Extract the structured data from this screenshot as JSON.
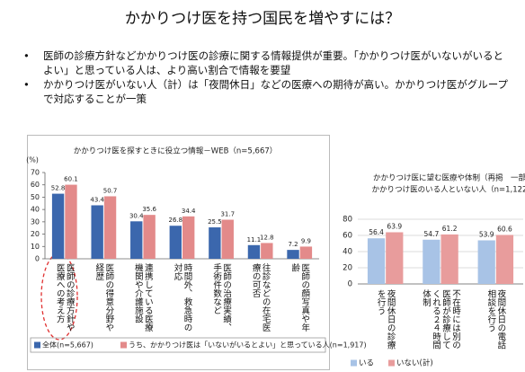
{
  "slide": {
    "title": "かかりつけ医を持つ国民を増やすには？",
    "bullets": [
      "医師の診療方針などかかりつけ医の診療に関する情報提供が重要。「かかりつけ医がいないがいるとよい」と思っている人は、より高い割合で情報を要望",
      "かかりつけ医がいない人（計）は「夜間休日」などの医療への期待が高い。かかりつけ医がグループで対応することが一策"
    ]
  },
  "chart_data": [
    {
      "type": "bar",
      "title": "かかりつけ医を探すときに役立つ情報－WEB（n=5,667）",
      "y_label": "(%)",
      "categories": [
        "医師の診療方針や医療への考え方",
        "医師の得意分野や経歴",
        "連携している医療機関や介護施設",
        "時間外、救急時の対応",
        "医師の治療実績、手術件数など",
        "往診などの在宅医療の可否",
        "医師の顔写真や年齢"
      ],
      "series": [
        {
          "name": "全体(n=5,667)",
          "color": "#3b67ad",
          "values": [
            52.8,
            43.4,
            30.4,
            26.8,
            25.5,
            11.1,
            7.2
          ]
        },
        {
          "name": "うち、かかりつけ医は「いないがいるとよい」と思っている人(n=1,917)",
          "color": "#e38a8a",
          "values": [
            60.1,
            50.7,
            35.6,
            34.4,
            31.7,
            12.8,
            9.9
          ]
        }
      ],
      "ylim": [
        0,
        70
      ],
      "yticks": [
        0,
        10,
        20,
        30,
        40,
        50,
        60,
        70
      ],
      "grid": false
    },
    {
      "type": "bar",
      "title": "かかりつけ医に望む医療や体制（再掲　一部",
      "subtitle": "かかりつけ医のいる人といない人（n=1,122",
      "categories": [
        "夜間休日の診療を行う",
        "不在時には別の医師が診療してくれる２４時間体制",
        "夜間休日の電話相談を行う"
      ],
      "series": [
        {
          "name": "いる",
          "color": "#a8c3e6",
          "values": [
            56.4,
            54.7,
            53.9
          ]
        },
        {
          "name": "いない(計)",
          "color": "#e89c9c",
          "values": [
            63.9,
            61.2,
            60.6
          ]
        }
      ],
      "ylim": [
        0,
        80
      ],
      "yticks": [
        0,
        20,
        40,
        60,
        80
      ],
      "grid": true
    }
  ]
}
